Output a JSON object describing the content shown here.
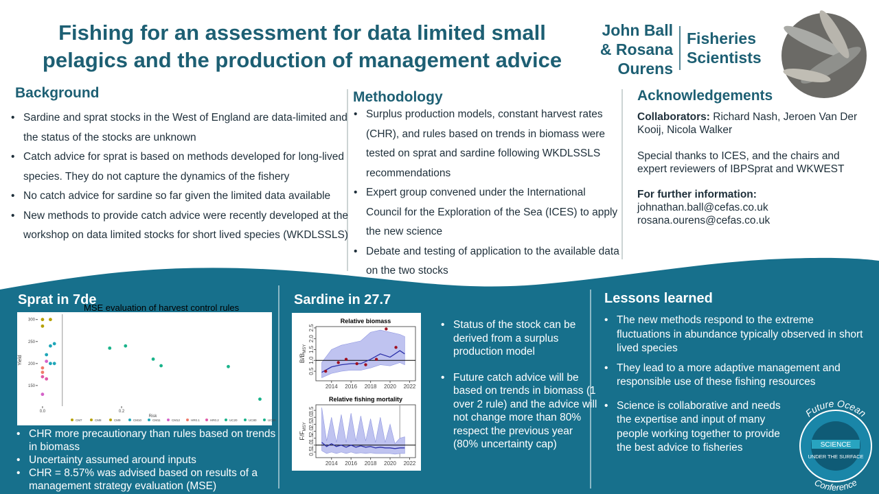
{
  "header": {
    "title": "Fishing for an assessment for data limited small pelagics and the production of management advice",
    "authors": [
      "John Ball",
      "& Rosana",
      "Ourens"
    ],
    "affiliation": [
      "Fisheries",
      "Scientists"
    ]
  },
  "background": {
    "heading": "Background",
    "items": [
      "Sardine and sprat stocks in the West of England are data-limited and the status of the stocks are unknown",
      "Catch advice for sprat is based on methods developed for long-lived species. They do not capture the dynamics of the fishery",
      "No catch advice for sardine so far given the limited data available",
      "New methods to provide catch advice were recently developed at the workshop on data limited stocks for short lived species (WKDLSSLS)"
    ]
  },
  "methodology": {
    "heading": "Methodology",
    "items": [
      "Surplus production models, constant harvest rates (CHR), and rules based on trends in biomass were tested on sprat and sardine following WKDLSSLS recommendations",
      "Expert group convened under the International Council for the Exploration of the Sea (ICES) to apply the new science",
      "Debate and testing of application to the available data on the two stocks"
    ]
  },
  "acknowledgements": {
    "heading": "Acknowledgements",
    "collaborators_label": "Collaborators:",
    "collaborators": "Richard Nash, Jeroen Van Der Kooij, Nicola Walker",
    "thanks": "Special thanks to ICES, and the chairs and expert reviewers of IBPSprat and WKWEST",
    "further_label": "For further information:",
    "emails": [
      "johnathan.ball@cefas.co.uk",
      "rosana.ourens@cefas.co.uk"
    ]
  },
  "sprat": {
    "heading": "Sprat in 7de",
    "figure": {
      "type": "scatter",
      "title": "MSE evaluation of harvest control rules",
      "xlabel": "Risk",
      "ylabel": "Yield",
      "xlim": [
        -0.012,
        0.57
      ],
      "ylim": [
        103,
        312
      ],
      "xticks": [
        {
          "value": 0,
          "label": "0.0"
        },
        {
          "value": 0.2,
          "label": "0.2"
        }
      ],
      "yticks": [
        150,
        200,
        250,
        300
      ],
      "vline": 0.05,
      "x": [
        0.0,
        0.02,
        0.0,
        0.03,
        0.02,
        0.01,
        0.01,
        0.02,
        0.03,
        0.0,
        0.0,
        0.0,
        0.01,
        0.0,
        0.17,
        0.21,
        0.28,
        0.3,
        0.47,
        0.55
      ],
      "y": [
        300,
        300,
        285,
        245,
        240,
        220,
        205,
        200,
        200,
        190,
        180,
        170,
        165,
        130,
        235,
        240,
        210,
        195,
        193,
        119
      ],
      "colors": [
        "#b5a000",
        "#b5a000",
        "#b5a000",
        "#1fa6b8",
        "#1fa6b8",
        "#1fa6b8",
        "#d462c8",
        "#1fa6b8",
        "#1fa6b8",
        "#f07a6a",
        "#f07a6a",
        "#e05aa8",
        "#e05aa8",
        "#d462c8",
        "#19b38a",
        "#19b38a",
        "#19b38a",
        "#19b38a",
        "#19b38a",
        "#19b38a"
      ],
      "legend": [
        "CM7",
        "CM8",
        "CM9",
        "CM10",
        "CM11",
        "CM12",
        "HR0.1",
        "HR0.2",
        "UC20",
        "UC80",
        "UC90"
      ]
    },
    "items": [
      "CHR more precautionary than rules based on trends in biomass",
      "Uncertainty assumed around inputs",
      "CHR = 8.57% was advised based on results of a management strategy evaluation (MSE)"
    ]
  },
  "sardine": {
    "heading": "Sardine in 27.7",
    "figures": [
      {
        "type": "line",
        "title": "Relative biomass",
        "ylabel": "B/B",
        "ylabel_sub": "MSY",
        "xlim": [
          2012.4,
          2022.6
        ],
        "ylim": [
          0.06,
          2.56
        ],
        "xticks": [
          2014,
          2016,
          2018,
          2020,
          2022
        ],
        "yticks": [
          0.5,
          {
            "value": 1,
            "label": "1.0"
          },
          1.5,
          {
            "value": 2,
            "label": "2.0"
          },
          2.5
        ],
        "reference": 1,
        "x": [
          2013,
          2014,
          2015,
          2016,
          2017,
          2018,
          2019,
          2020,
          2021,
          2021.5
        ],
        "median": [
          0.45,
          0.7,
          0.8,
          0.85,
          0.85,
          1.05,
          1.3,
          1.15,
          1.45,
          1.3
        ],
        "lower": [
          0.2,
          0.4,
          0.5,
          0.55,
          0.55,
          0.65,
          0.8,
          0.75,
          0.9,
          0.8
        ],
        "upper": [
          0.9,
          1.5,
          1.7,
          1.8,
          1.9,
          2.3,
          2.4,
          2.3,
          2.2,
          2.1
        ],
        "points_x": [
          2013.4,
          2014.7,
          2015.5,
          2016.6,
          2017.5,
          2018.6,
          2019.6,
          2020.6
        ],
        "points_y": [
          0.5,
          0.9,
          1.05,
          0.85,
          0.8,
          1.05,
          2.45,
          1.6
        ]
      },
      {
        "type": "line",
        "title": "Relative fishing mortality",
        "ylabel": "F/F",
        "ylabel_sub": "MSY",
        "xlim": [
          2012.4,
          2022.6
        ],
        "ylim": [
          0.1,
          3.9
        ],
        "xticks": [
          2014,
          2016,
          2018,
          2020,
          2022
        ],
        "yticks": [
          0.5,
          {
            "value": 1,
            "label": "1.0"
          },
          1.5,
          {
            "value": 2,
            "label": "2.0"
          },
          2.5,
          {
            "value": 3,
            "label": "3.0"
          },
          3.5
        ],
        "reference": 1,
        "vline": 2021,
        "x": [
          2013,
          2013.5,
          2014,
          2014.5,
          2015,
          2015.5,
          2016,
          2016.5,
          2017,
          2017.5,
          2018,
          2018.5,
          2019,
          2019.5,
          2020,
          2020.5,
          2021,
          2021.5
        ],
        "median": [
          1.2,
          0.9,
          1.1,
          0.9,
          1.0,
          0.85,
          1.0,
          0.85,
          0.95,
          0.85,
          0.9,
          0.8,
          0.85,
          0.8,
          0.8,
          0.75,
          0.8,
          0.8
        ],
        "lower": [
          0.6,
          0.4,
          0.5,
          0.4,
          0.5,
          0.4,
          0.5,
          0.4,
          0.45,
          0.4,
          0.45,
          0.4,
          0.4,
          0.4,
          0.4,
          0.35,
          0.4,
          0.4
        ],
        "upper": [
          3.7,
          1.3,
          3.0,
          1.2,
          3.2,
          1.2,
          3.3,
          1.3,
          3.1,
          1.3,
          2.9,
          1.2,
          3.0,
          1.2,
          2.5,
          1.1,
          1.5,
          1.6
        ]
      }
    ],
    "items": [
      "Status of the stock can be derived from a surplus production model",
      "Future catch advice will be based on trends in biomass (1 over 2 rule) and the advice will not change more than 80% respect the previous year (80% uncertainty cap)"
    ]
  },
  "lessons": {
    "heading": "Lessons learned",
    "items": [
      "The new methods respond to the extreme fluctuations in abundance typically observed in short lived species",
      "They lead to a more adaptive management and responsible use of these fishing resources",
      "Science is collaborative and needs the expertise and input of many people working together to provide the best advice to fisheries"
    ]
  },
  "logo": {
    "top": "Future Ocean",
    "band1": "SCIENCE",
    "band2": "UNDER THE SURFACE",
    "bottom": "Conference"
  }
}
